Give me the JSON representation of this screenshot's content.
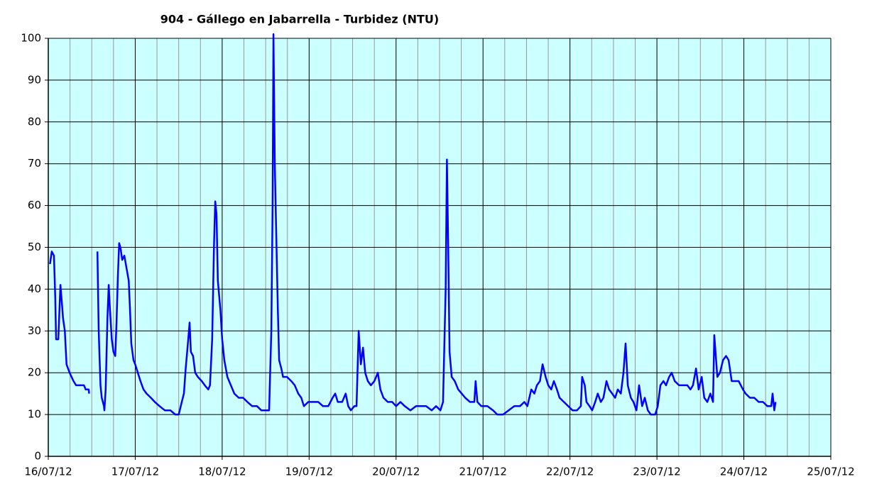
{
  "chart_data": {
    "type": "line",
    "title": "904 - Gállego en Jabarrella - Turbidez (NTU)",
    "x": [
      0.02,
      0.04,
      0.065,
      0.08,
      0.09,
      0.115,
      0.14,
      0.155,
      0.17,
      0.19,
      0.21,
      0.245,
      0.29,
      0.32,
      0.37,
      0.41,
      0.43,
      0.465,
      0.47,
      0.52,
      0.565,
      0.58,
      0.6,
      0.615,
      0.64,
      0.645,
      0.66,
      0.68,
      0.695,
      0.71,
      0.73,
      0.75,
      0.77,
      0.785,
      0.8,
      0.815,
      0.83,
      0.85,
      0.875,
      0.9,
      0.925,
      0.94,
      0.955,
      0.98,
      1.0,
      1.03,
      1.06,
      1.095,
      1.13,
      1.18,
      1.225,
      1.28,
      1.34,
      1.405,
      1.46,
      1.5,
      1.535,
      1.56,
      1.58,
      1.61,
      1.625,
      1.64,
      1.665,
      1.69,
      1.72,
      1.765,
      1.8,
      1.84,
      1.86,
      1.885,
      1.905,
      1.92,
      1.935,
      1.95,
      1.98,
      2.0,
      2.025,
      2.06,
      2.1,
      2.14,
      2.19,
      2.24,
      2.29,
      2.345,
      2.4,
      2.45,
      2.5,
      2.54,
      2.565,
      2.58,
      2.59,
      2.605,
      2.62,
      2.64,
      2.655,
      2.68,
      2.7,
      2.745,
      2.795,
      2.835,
      2.875,
      2.91,
      2.94,
      2.99,
      3.04,
      3.105,
      3.16,
      3.22,
      3.27,
      3.3,
      3.33,
      3.38,
      3.42,
      3.45,
      3.48,
      3.52,
      3.545,
      3.57,
      3.595,
      3.62,
      3.645,
      3.675,
      3.71,
      3.75,
      3.79,
      3.82,
      3.855,
      3.905,
      3.955,
      4.0,
      4.05,
      4.1,
      4.165,
      4.23,
      4.3,
      4.345,
      4.41,
      4.46,
      4.51,
      4.54,
      4.57,
      4.585,
      4.6,
      4.615,
      4.64,
      4.675,
      4.715,
      4.755,
      4.795,
      4.85,
      4.9,
      4.915,
      4.935,
      4.98,
      5.05,
      5.115,
      5.165,
      5.23,
      5.295,
      5.36,
      5.425,
      5.475,
      5.51,
      5.555,
      5.59,
      5.62,
      5.655,
      5.685,
      5.72,
      5.75,
      5.785,
      5.815,
      5.85,
      5.88,
      5.93,
      5.98,
      6.03,
      6.08,
      6.125,
      6.14,
      6.17,
      6.19,
      6.225,
      6.255,
      6.29,
      6.32,
      6.355,
      6.385,
      6.42,
      6.45,
      6.485,
      6.52,
      6.55,
      6.585,
      6.615,
      6.64,
      6.665,
      6.7,
      6.73,
      6.765,
      6.795,
      6.83,
      6.86,
      6.895,
      6.93,
      6.98,
      7.01,
      7.04,
      7.075,
      7.105,
      7.14,
      7.17,
      7.205,
      7.255,
      7.3,
      7.35,
      7.385,
      7.415,
      7.45,
      7.48,
      7.515,
      7.545,
      7.58,
      7.615,
      7.645,
      7.66,
      7.695,
      7.725,
      7.76,
      7.795,
      7.825,
      7.86,
      7.91,
      7.94,
      7.99,
      8.02,
      8.07,
      8.12,
      8.17,
      8.22,
      8.27,
      8.315,
      8.33,
      8.35,
      8.365
    ],
    "values": [
      46,
      49,
      48,
      38,
      28,
      28,
      41,
      37,
      33,
      30,
      22,
      20,
      18,
      17,
      17,
      17,
      16,
      16,
      15,
      null,
      49,
      30,
      17,
      14,
      12,
      11,
      16,
      33,
      41,
      35,
      28,
      25,
      24,
      32,
      43,
      51,
      50,
      47,
      48,
      45,
      42,
      35,
      27,
      23,
      22,
      20,
      18,
      16,
      15,
      14,
      13,
      12,
      11,
      11,
      10,
      10,
      13,
      15,
      21,
      28,
      32,
      25,
      24,
      20,
      19,
      18,
      17,
      16,
      17,
      28,
      50,
      61,
      58,
      42,
      35,
      28,
      23,
      19,
      17,
      15,
      14,
      14,
      13,
      12,
      12,
      11,
      11,
      11,
      30,
      60,
      101,
      70,
      55,
      35,
      23,
      21,
      19,
      19,
      18,
      17,
      15,
      14,
      12,
      13,
      13,
      13,
      12,
      12,
      14,
      15,
      13,
      13,
      15,
      12,
      11,
      12,
      12,
      30,
      22,
      26,
      20,
      18,
      17,
      18,
      20,
      16,
      14,
      13,
      13,
      12,
      13,
      12,
      11,
      12,
      12,
      12,
      11,
      12,
      11,
      13,
      40,
      71,
      50,
      25,
      19,
      18,
      16,
      15,
      14,
      13,
      13,
      18,
      13,
      12,
      12,
      11,
      10,
      10,
      11,
      12,
      12,
      13,
      12,
      16,
      15,
      17,
      18,
      22,
      19,
      17,
      16,
      18,
      16,
      14,
      13,
      12,
      11,
      11,
      12,
      19,
      17,
      13,
      12,
      11,
      13,
      15,
      13,
      14,
      18,
      16,
      15,
      14,
      16,
      15,
      20,
      27,
      17,
      14,
      13,
      11,
      17,
      12,
      14,
      11,
      10,
      10,
      12,
      17,
      18,
      17,
      19,
      20,
      18,
      17,
      17,
      17,
      16,
      17,
      21,
      16,
      19,
      14,
      13,
      15,
      13,
      29,
      19,
      20,
      23,
      24,
      23,
      18,
      18,
      18,
      16,
      15,
      14,
      14,
      13,
      13,
      12,
      12,
      15,
      11,
      13
    ],
    "color": "#0000ff",
    "xlim": [
      0,
      9
    ],
    "xticks": [
      {
        "value": 0,
        "label": "16/07/12"
      },
      {
        "value": 1,
        "label": "17/07/12"
      },
      {
        "value": 2,
        "label": "18/07/12"
      },
      {
        "value": 3,
        "label": "19/07/12"
      },
      {
        "value": 4,
        "label": "20/07/12"
      },
      {
        "value": 5,
        "label": "21/07/12"
      },
      {
        "value": 6,
        "label": "22/07/12"
      },
      {
        "value": 7,
        "label": "23/07/12"
      },
      {
        "value": 8,
        "label": "24/07/12"
      },
      {
        "value": 9,
        "label": "25/07/12"
      }
    ],
    "x_minor_divisions": 4,
    "ylim": [
      0,
      100
    ],
    "yticks": [
      0,
      10,
      20,
      30,
      40,
      50,
      60,
      70,
      80,
      90,
      100
    ],
    "grid": true,
    "background": "#ccffff"
  }
}
